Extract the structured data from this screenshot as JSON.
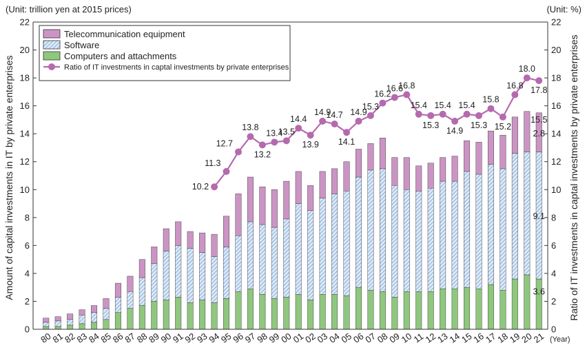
{
  "chart_data": {
    "type": "bar",
    "stacked": true,
    "unit_left": "(Unit: trillion yen at 2015 prices)",
    "unit_right": "(Unit: %)",
    "ylabel": "Amount of capital investments in IT by private enterprises",
    "ylabel_right": "Ratio of IT investments in captal investments by private enterprises",
    "xunit": "(Year)",
    "ylim": [
      0,
      22
    ],
    "yticks": [
      0,
      2,
      4,
      6,
      8,
      10,
      12,
      14,
      16,
      18,
      20,
      22
    ],
    "ylim_right": [
      0,
      22
    ],
    "yticks_right": [
      0,
      2,
      4,
      6,
      8,
      10,
      12,
      14,
      16,
      18,
      20,
      22
    ],
    "legend_position": "top-left",
    "categories": [
      "80",
      "81",
      "82",
      "83",
      "84",
      "85",
      "86",
      "87",
      "88",
      "89",
      "90",
      "91",
      "92",
      "93",
      "94",
      "95",
      "96",
      "97",
      "98",
      "99",
      "00",
      "01",
      "02",
      "03",
      "04",
      "05",
      "06",
      "07",
      "08",
      "09",
      "10",
      "11",
      "12",
      "13",
      "14",
      "15",
      "16",
      "17",
      "18",
      "19",
      "20",
      "21"
    ],
    "series": [
      {
        "name": "Computers and attachments",
        "color": "#8fc77e",
        "values": [
          0.2,
          0.2,
          0.3,
          0.4,
          0.5,
          0.7,
          1.2,
          1.5,
          1.7,
          2.0,
          2.1,
          2.3,
          1.9,
          2.1,
          1.9,
          2.2,
          2.7,
          2.9,
          2.5,
          2.2,
          2.3,
          2.5,
          2.1,
          2.5,
          2.5,
          2.4,
          3.0,
          2.8,
          2.7,
          2.3,
          2.7,
          2.7,
          2.7,
          2.9,
          2.9,
          3.0,
          2.9,
          3.2,
          2.8,
          3.6,
          3.9,
          3.6
        ]
      },
      {
        "name": "Software",
        "color": "#c6dcf2",
        "values": [
          0.3,
          0.4,
          0.4,
          0.6,
          0.7,
          0.8,
          1.1,
          1.2,
          2.0,
          2.7,
          3.5,
          3.7,
          3.9,
          3.4,
          3.3,
          3.7,
          4.0,
          4.8,
          5.0,
          5.1,
          5.6,
          6.5,
          6.4,
          6.9,
          7.2,
          7.5,
          7.9,
          8.6,
          8.8,
          8.0,
          7.3,
          7.2,
          7.4,
          7.7,
          7.7,
          8.3,
          8.2,
          8.6,
          8.7,
          9.0,
          8.8,
          9.1
        ]
      },
      {
        "name": "Telecommunication equipment",
        "color": "#cc94c5",
        "values": [
          0.3,
          0.3,
          0.4,
          0.4,
          0.5,
          0.7,
          1.0,
          1.1,
          1.3,
          1.2,
          1.6,
          1.7,
          1.2,
          1.4,
          1.6,
          2.2,
          3.0,
          3.2,
          2.7,
          2.7,
          2.7,
          2.3,
          1.8,
          1.9,
          1.8,
          2.1,
          2.0,
          1.9,
          2.2,
          2.0,
          2.3,
          1.8,
          1.8,
          1.7,
          1.8,
          2.2,
          2.3,
          2.4,
          2.4,
          2.6,
          2.9,
          2.8
        ]
      }
    ],
    "line_series": {
      "name": "Ratio of IT investments in captal investments by private enterprises",
      "color": "#b56aae",
      "start_index": 14,
      "values": [
        10.2,
        11.3,
        12.7,
        13.8,
        13.2,
        13.4,
        13.5,
        14.4,
        13.9,
        14.9,
        14.7,
        14.1,
        14.9,
        15.3,
        16.2,
        16.6,
        16.8,
        15.4,
        15.3,
        15.4,
        14.9,
        15.4,
        15.3,
        15.8,
        15.2,
        16.8,
        18.0,
        17.8
      ],
      "labels": [
        "10.2",
        "11.3",
        "12.7",
        "13.8",
        "13.2",
        "13.4",
        "13.5",
        "14.4",
        "13.9",
        "14.9",
        "14.7",
        "14.1",
        "14.9",
        "15.3",
        "16.2",
        "16.6",
        "16.8",
        "15.4",
        "15.3",
        "15.4",
        "14.9",
        "15.4",
        "15.3",
        "15.8",
        "15.2",
        "16.8",
        "18.0",
        "17.8"
      ]
    },
    "annotations_2021": {
      "total": "15.5",
      "telecom": "2.8",
      "software": "9.1",
      "computers": "3.6"
    }
  }
}
